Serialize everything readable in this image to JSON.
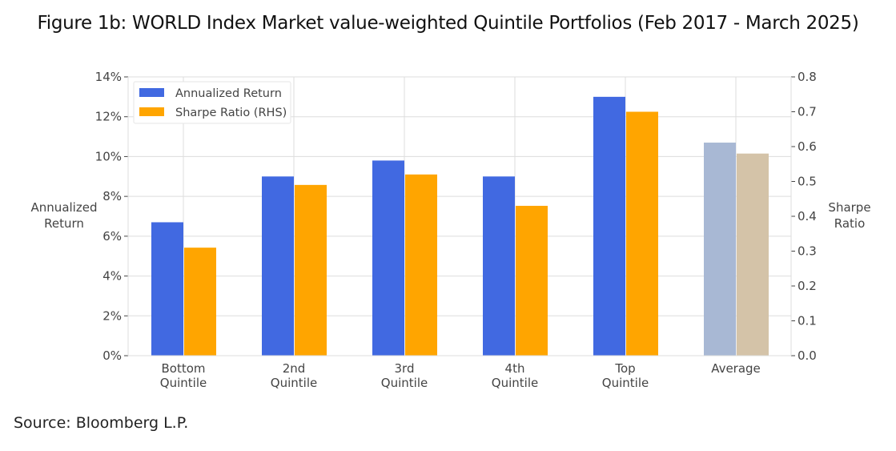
{
  "title": "Figure 1b: WORLD Index Market value-weighted Quintile Portfolios (Feb 2017 - March 2025)",
  "source": "Source: Bloomberg L.P.",
  "colors": {
    "return": "#4169e1",
    "sharpe": "#ffa500",
    "avg_return": "#a8b8d4",
    "avg_sharpe": "#d4c3a8",
    "grid": "#dddddd"
  },
  "chart_data": {
    "type": "bar",
    "title": "Figure 1b: WORLD Index Market value-weighted Quintile Portfolios (Feb 2017 - March 2025)",
    "categories": [
      "Bottom Quintile",
      "2nd Quintile",
      "3rd Quintile",
      "4th Quintile",
      "Top Quintile",
      "Average"
    ],
    "category_lines": [
      [
        "Bottom",
        "Quintile"
      ],
      [
        "2nd",
        "Quintile"
      ],
      [
        "3rd",
        "Quintile"
      ],
      [
        "4th",
        "Quintile"
      ],
      [
        "Top",
        "Quintile"
      ],
      [
        "Average"
      ]
    ],
    "series": [
      {
        "name": "Annualized Return",
        "axis": "left",
        "unit": "%",
        "values": [
          6.7,
          9.0,
          9.8,
          9.0,
          13.0,
          10.7
        ]
      },
      {
        "name": "Sharpe Ratio (RHS)",
        "axis": "right",
        "values": [
          0.31,
          0.49,
          0.52,
          0.43,
          0.7,
          0.58
        ]
      }
    ],
    "ylabel": "Annualized Return",
    "ylabel_lines": [
      "Annualized",
      "Return"
    ],
    "y2label": "Sharpe Ratio",
    "y2label_lines": [
      "Sharpe",
      "Ratio"
    ],
    "ylim": [
      0,
      14
    ],
    "y2lim": [
      0,
      0.8
    ],
    "yticks": [
      "0%",
      "2%",
      "4%",
      "6%",
      "8%",
      "10%",
      "12%",
      "14%"
    ],
    "y2ticks": [
      "0.0",
      "0.1",
      "0.2",
      "0.3",
      "0.4",
      "0.5",
      "0.6",
      "0.7",
      "0.8"
    ],
    "grid": true,
    "legend_position": "upper left",
    "legend": [
      "Annualized Return",
      "Sharpe Ratio (RHS)"
    ]
  }
}
